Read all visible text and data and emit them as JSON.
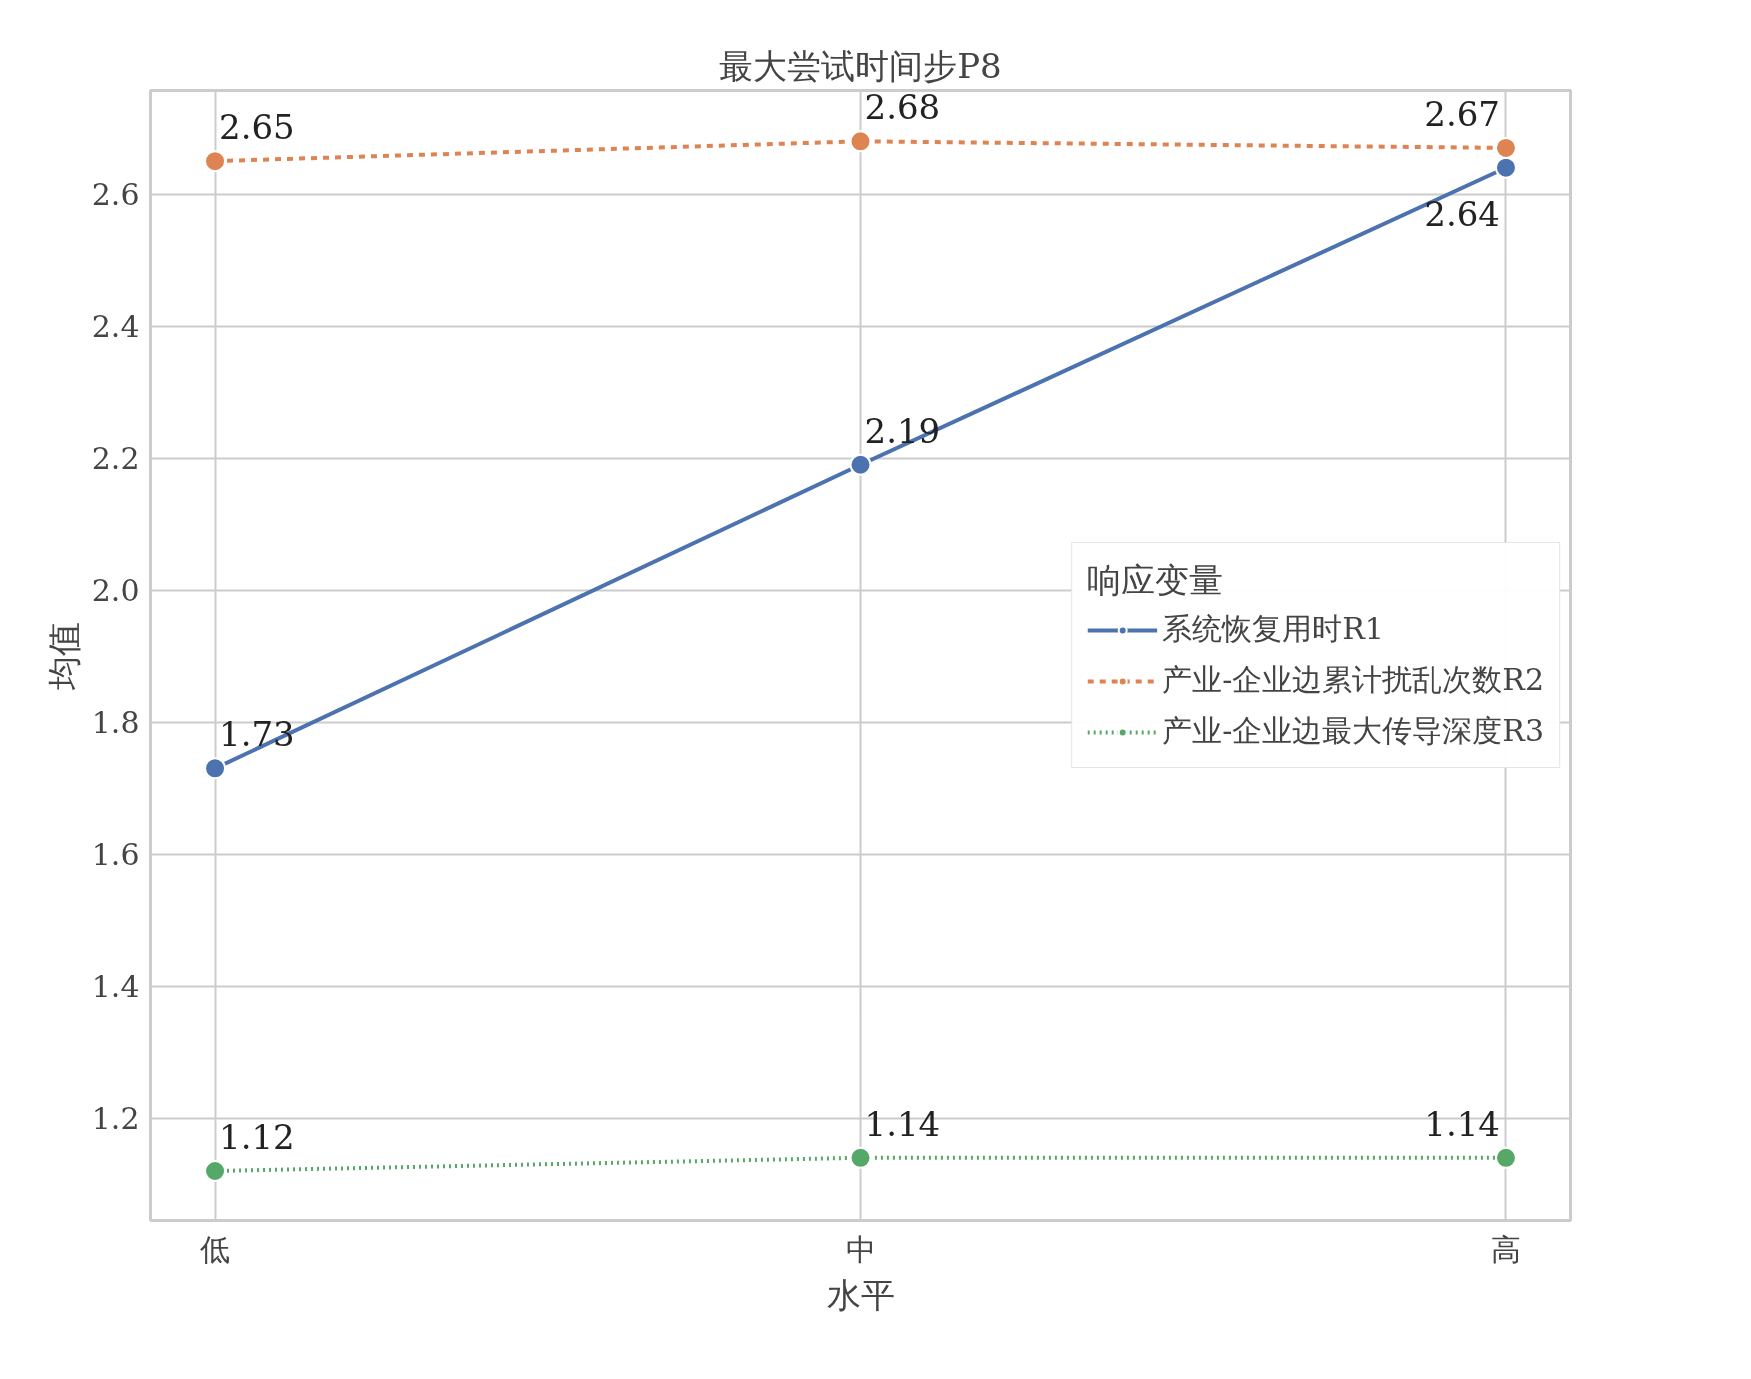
{
  "chart_data": {
    "type": "line",
    "title": "最大尝试时间步P8",
    "xlabel": "水平",
    "ylabel": "均值",
    "legend_title": "响应变量",
    "categories": [
      "低",
      "中",
      "高"
    ],
    "series": [
      {
        "name": "系统恢复用时R1",
        "color": "#4c72b0",
        "line_style": "solid",
        "values": [
          1.73,
          2.19,
          2.64
        ]
      },
      {
        "name": "产业-企业边累计扰乱次数R2",
        "color": "#dd8452",
        "line_style": "dashed",
        "values": [
          2.65,
          2.68,
          2.67
        ]
      },
      {
        "name": "产业-企业边最大传导深度R3",
        "color": "#55a868",
        "line_style": "dotted",
        "values": [
          1.12,
          1.14,
          1.14
        ]
      }
    ],
    "ylim": [
      1.045,
      2.757
    ],
    "yticks": [
      1.2,
      1.4,
      1.6,
      1.8,
      {
        "value": 2,
        "label": "2.0"
      },
      2.2,
      2.4,
      2.6
    ],
    "grid": true,
    "legend": "center right",
    "marker": "circle",
    "data_labels": true
  }
}
